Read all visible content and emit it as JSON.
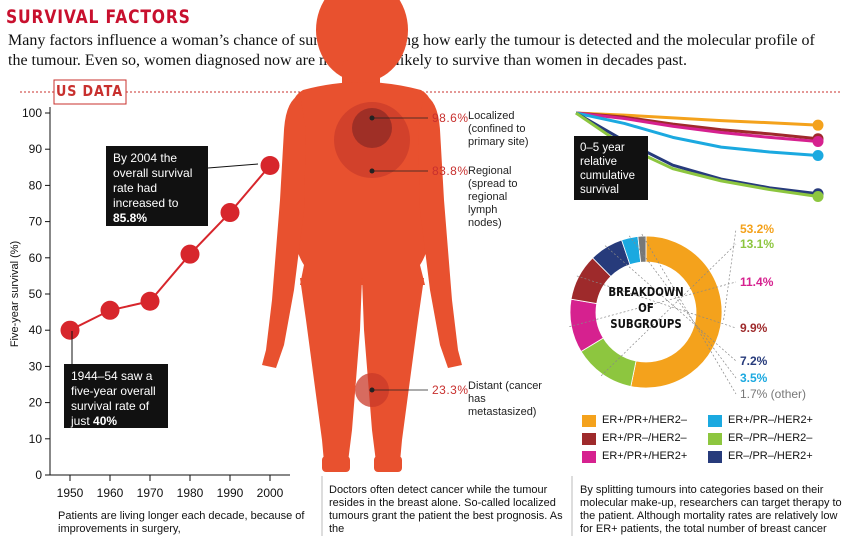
{
  "header": {
    "title": "SURVIVAL FACTORS",
    "subtitle": "Many factors influence a woman’s chance of survival, including how early the tumour is detected and the molecular profile of the tumour. Even so, women diagnosed now are much more likely to survive than women in decades past.",
    "section_label": "US DATA"
  },
  "callouts": {
    "top_text": "By 2004 the overall survival rate had increased to",
    "top_value": "85.8%",
    "bottom_text": "1944–54 saw a five-year overall survival rate of just",
    "bottom_value": "40%"
  },
  "stages": [
    {
      "pct": "98.6%",
      "label": "Localized (confined to primary site)"
    },
    {
      "pct": "83.8%",
      "label": "Regional (spread to regional lymph nodes)"
    },
    {
      "pct": "23.3%",
      "label": "Distant (cancer has metastasized)"
    }
  ],
  "relative_label": "0–5 year relative cumulative survival",
  "breakdown_label": [
    "BREAKDOWN",
    "OF",
    "SUBGROUPS"
  ],
  "footers": {
    "col1": "Patients are living longer each decade, because of improvements in surgery,",
    "col2": "Doctors often detect cancer while the tumour resides in the breast alone. So-called localized tumours grant the patient the best prognosis. As the",
    "col3": "By splitting tumours into categories based on their molecular make-up, researchers can target therapy to the patient. Although mortality rates are relatively low for ER+ patients, the total number of breast cancer"
  },
  "chart_data": [
    {
      "type": "line",
      "x": [
        1950,
        1960,
        1970,
        1980,
        1990,
        2000
      ],
      "y": [
        40,
        45.5,
        48,
        61,
        72.5,
        85.5
      ],
      "xlabel": "",
      "ylabel": "Five-year survival (%)",
      "ylim": [
        0,
        100
      ],
      "yticks": [
        0,
        10,
        20,
        30,
        40,
        50,
        60,
        70,
        80,
        90,
        100
      ],
      "xticks": [
        "1950",
        "1960",
        "1970",
        "1980",
        "1990",
        "2000"
      ],
      "color": "#d7262c"
    },
    {
      "type": "line",
      "title": "0–5 year relative cumulative survival",
      "x": [
        0,
        1,
        2,
        3,
        4,
        5
      ],
      "series": [
        {
          "color": "#f4a21c",
          "values": [
            100,
            99.4,
            98.6,
            97.8,
            97.2,
            96.5
          ]
        },
        {
          "color": "#9e2a2b",
          "values": [
            100,
            98.8,
            96.8,
            95.2,
            94.0,
            92.6
          ]
        },
        {
          "color": "#d6218f",
          "values": [
            100,
            98.4,
            96.2,
            94.4,
            93.0,
            91.8
          ]
        },
        {
          "color": "#1ba9e0",
          "values": [
            100,
            97.0,
            93.0,
            90.2,
            88.8,
            87.8
          ]
        },
        {
          "color": "#273b7b",
          "values": [
            100,
            92.0,
            85.0,
            81.0,
            78.5,
            76.8
          ]
        },
        {
          "color": "#8dc63f",
          "values": [
            100,
            90.5,
            84.0,
            80.5,
            78.0,
            76.0
          ]
        }
      ]
    },
    {
      "type": "pie",
      "title": "BREAKDOWN OF SUBGROUPS",
      "slices": [
        {
          "name": "ER+/PR+/HER2–",
          "value": 53.2,
          "label": "53.2%",
          "color": "#f4a21c"
        },
        {
          "name": "ER–/PR–/HER2–",
          "value": 13.1,
          "label": "13.1%",
          "color": "#8dc63f"
        },
        {
          "name": "ER+/PR+/HER2+",
          "value": 11.4,
          "label": "11.4%",
          "color": "#d6218f"
        },
        {
          "name": "ER+/PR–/HER2–",
          "value": 9.9,
          "label": "9.9%",
          "color": "#9e2a2b"
        },
        {
          "name": "ER–/PR–/HER2+",
          "value": 7.2,
          "label": "7.2%",
          "color": "#273b7b"
        },
        {
          "name": "ER+/PR–/HER2+",
          "value": 3.5,
          "label": "3.5%",
          "color": "#1ba9e0"
        },
        {
          "name": "other",
          "value": 1.7,
          "label": "1.7% (other)",
          "color": "#777777"
        }
      ],
      "legend": [
        {
          "name": "ER+/PR+/HER2–",
          "color": "#f4a21c"
        },
        {
          "name": "ER+/PR–/HER2+",
          "color": "#1ba9e0"
        },
        {
          "name": "ER+/PR–/HER2–",
          "color": "#9e2a2b"
        },
        {
          "name": "ER–/PR–/HER2–",
          "color": "#8dc63f"
        },
        {
          "name": "ER+/PR+/HER2+",
          "color": "#d6218f"
        },
        {
          "name": "ER–/PR–/HER2+",
          "color": "#273b7b"
        }
      ]
    }
  ]
}
